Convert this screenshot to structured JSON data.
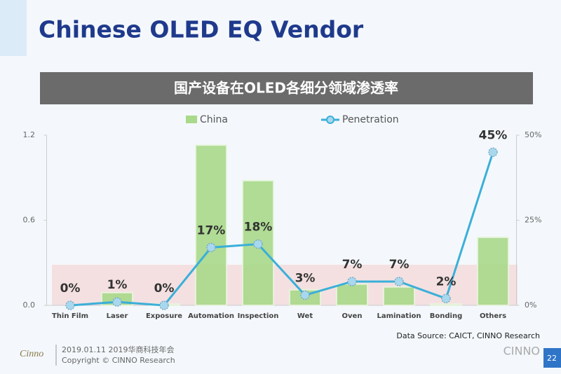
{
  "slide": {
    "title": "Chinese OLED  EQ Vendor",
    "source": "Data Source: CAICT, CINNO Research",
    "logo": "Cinno",
    "date": "2019.01.11  2019华商科技年会",
    "copyright": "Copyright © CINNO Research",
    "watermark": "CINNO",
    "page": "22"
  },
  "chart_data": {
    "type": "bar-line",
    "title": "国产设备在OLED各细分领域渗透率",
    "categories": [
      "Thin Film",
      "Laser",
      "Exposure",
      "Automation",
      "Inspection",
      "Wet",
      "Oven",
      "Lamination",
      "Bonding",
      "Others"
    ],
    "series": [
      {
        "name": "China",
        "type": "bar",
        "color": "#a9d98a",
        "values": [
          0,
          0.09,
          0.01,
          1.13,
          0.88,
          0.11,
          0.15,
          0.13,
          0.01,
          0.48
        ]
      },
      {
        "name": "Penetration",
        "type": "line",
        "axis": "y2",
        "color": "#3aafd9",
        "values": [
          0,
          1,
          0,
          17,
          18,
          3,
          7,
          7,
          2,
          45
        ],
        "value_labels": [
          "0%",
          "1%",
          "0%",
          "17%",
          "18%",
          "3%",
          "7%",
          "7%",
          "2%",
          "45%"
        ]
      }
    ],
    "ylim": [
      0,
      1.2
    ],
    "yticks": [
      {
        "value": 0,
        "label": "0.0"
      },
      0.6,
      1.2
    ],
    "y2lim": [
      0,
      50
    ],
    "y2ticks": [
      {
        "value": 0,
        "label": "0%"
      },
      {
        "value": 25,
        "label": "25%"
      },
      {
        "value": 50,
        "label": "50%"
      }
    ],
    "grid": false,
    "legend": "top"
  }
}
